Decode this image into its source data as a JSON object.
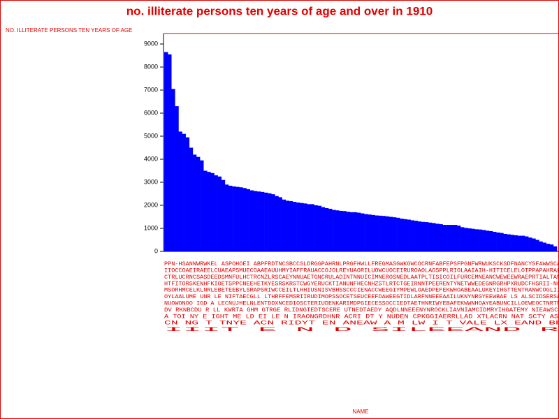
{
  "chart_data": {
    "type": "bar",
    "title": "no. illiterate persons ten years of age and over in 1910",
    "y_label": "NO. ILLITERATE PERSONS TEN YEARS OF AGE",
    "x_label": "NAME",
    "color": "#0000ff",
    "ylim": [
      0,
      9000
    ],
    "yticks": [
      0,
      1000,
      2000,
      3000,
      4000,
      5000,
      6000,
      7000,
      8000,
      9000
    ],
    "category_label_rows": [
      "PPN-HSANNWRWKEL ASPOHOEI ABPFRDTNCSBCCSLDRGGPAHRNLPRGFHWLLFREGMASGWKGWCOCRNFABFEPSFPGNFWRWUKSCKSDFNANCYSFAWWSCABBWHFFCBC",
      "IIOCCOAEIRAEELCUAEAPSMUECOAAEAUUHMYIAFFRAUACCOJOLREYUAORILUOWCUOCEIRUROAOLAOSPPLRIOLAAIAIH-HITICELELOTPPAPAHRALIIRAULR",
      "CTRLUCRNCSASDEEDSMNFULHCTRCNZLRSCAEYNNUAETGNCRULADINTNNUICIMNEROSNEDLAATPLTISICOILFURCEMNEANCWEWEEWRAEPRTIALTANGEDIEA",
      "HTFITORSKENHFKIOETSPPCNEEHETKYESRSKRSTCWGYERUCKTIANUNFHECNHZSTLRTCTGEIRNNTPEERENTYNETWWEDEGNRGRHPXRUDCFHSRII-NCHDFRNI",
      "MSORHMCELKLNRLEBETEEBYLSRAPSRIWCCEILTLHHIUSNISVBHSSCCCIENACCWEEGIYMPEWLOAEDPEFEKWHOABEAALUKEYIHGTTENTRANWCOGLIIDLEDTAG",
      "OYLAALUME UNR LE NIFTAECGLL LTHRFFEMSRIIRUDIMOPSSOCETSEUCEEFDAWEEGTIDLARFNNEEEAAILUKNYNRGYEEWBAE LS ALSCIDSERSAFEANOITSLTT",
      "NUOWONOO IGD A LECNUJHELNLENTDDXNCEDIOSCTERIUDENKARIMDPGIECESSOCCIEDTAETHNRIWYEBAFEKWWNHOAYEABUNCILLOEWEOCTNRTNEEEFAPROCBI",
      "DV RKNBCDU R LL  KWRTA GHM   GTRGE   RLIDNGTEDTSCERE UTNEDTAEDY  AQDLNNEEENYNROCKLIAVNIAMCIDMRYIHGATEMY NIEAWSCIY NCTKOX DTOR",
      "   A TOI NY   E   IGHT  ME LD  EI LE   N   IRAONGRDHNR ACRI DT Y NUDEN  CPKGGIAERRLLAD   XTLACRN   NAT SCTY   ASI LEEXAN  RSGT",
      "   CN  NG            T              TNYE   ACN   RIDYT    EN     ANEAW     A M   LW    I      T       VALE LX EAND  BPAUG REG",
      "   IIIT                                       E               N              D                      SILEEAND        R   E"
    ],
    "values": [
      8650,
      8550,
      7050,
      6300,
      5200,
      5100,
      4950,
      4500,
      4200,
      4100,
      3950,
      3500,
      3450,
      3400,
      3300,
      3250,
      3100,
      2900,
      2850,
      2820,
      2800,
      2780,
      2750,
      2700,
      2650,
      2620,
      2600,
      2580,
      2550,
      2520,
      2480,
      2400,
      2350,
      2250,
      2200,
      2180,
      2150,
      2120,
      2100,
      2080,
      2050,
      2050,
      2000,
      1980,
      1920,
      1880,
      1850,
      1800,
      1780,
      1760,
      1750,
      1720,
      1700,
      1700,
      1680,
      1650,
      1620,
      1600,
      1580,
      1560,
      1550,
      1540,
      1520,
      1500,
      1480,
      1460,
      1420,
      1400,
      1380,
      1350,
      1330,
      1300,
      1280,
      1270,
      1250,
      1230,
      1200,
      1180,
      1150,
      1150,
      1150,
      1150,
      1120,
      1050,
      1020,
      1000,
      980,
      960,
      950,
      930,
      900,
      880,
      850,
      820,
      800,
      760,
      740,
      720,
      700,
      680,
      680,
      650,
      600,
      560,
      500,
      430,
      380,
      330,
      300,
      220
    ]
  }
}
